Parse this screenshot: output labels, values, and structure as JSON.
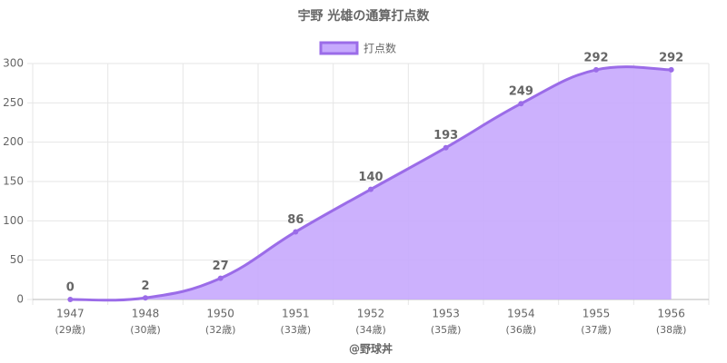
{
  "chart_data": {
    "type": "line",
    "title": "宇野 光雄の通算打点数",
    "categories": [
      [
        "1947",
        "(29歳)"
      ],
      [
        "1948",
        "(30歳)"
      ],
      [
        "1950",
        "(32歳)"
      ],
      [
        "1951",
        "(33歳)"
      ],
      [
        "1952",
        "(34歳)"
      ],
      [
        "1953",
        "(35歳)"
      ],
      [
        "1954",
        "(36歳)"
      ],
      [
        "1955",
        "(37歳)"
      ],
      [
        "1956",
        "(38歳)"
      ]
    ],
    "series": [
      {
        "name": "打点数",
        "color": "#9b6ce8",
        "fill": "#c6a9fd",
        "values": [
          0,
          2,
          27,
          86,
          140,
          193,
          249,
          292,
          292
        ]
      }
    ],
    "ylim": [
      0,
      300
    ],
    "yticks": [
      0,
      50,
      100,
      150,
      200,
      250,
      300
    ],
    "grid": true,
    "xlabel": "@野球丼"
  }
}
